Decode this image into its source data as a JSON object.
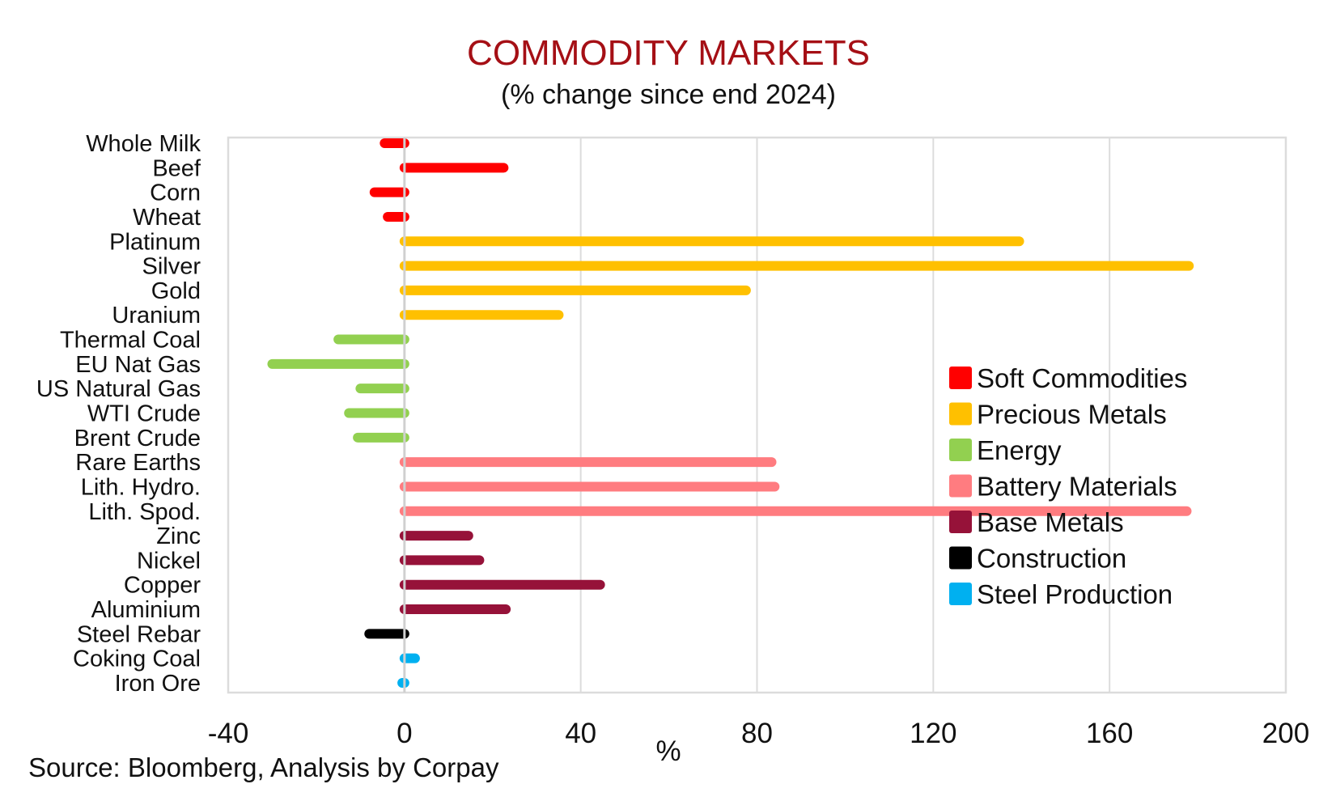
{
  "chart_data": {
    "type": "bar",
    "orientation": "horizontal",
    "title": "COMMODITY MARKETS",
    "subtitle": "(% change since end 2024)",
    "xlabel": "%",
    "ylabel": "",
    "xlim": [
      -40,
      200
    ],
    "xticks": [
      -40,
      0,
      40,
      80,
      120,
      160,
      200
    ],
    "xtick_labels": [
      "-40",
      "0",
      "40",
      "80",
      "120",
      "160",
      "200"
    ],
    "grid": "vertical",
    "legend_position": "right-middle",
    "source": "Source: Bloomberg, Analysis by Corpay",
    "groups": [
      {
        "name": "Soft Commodities",
        "color": "#FF0000"
      },
      {
        "name": "Precious Metals",
        "color": "#FFC000"
      },
      {
        "name": "Energy",
        "color": "#92D050"
      },
      {
        "name": "Battery Materials",
        "color": "#FF7C80"
      },
      {
        "name": "Base Metals",
        "color": "#961239"
      },
      {
        "name": "Construction",
        "color": "#000000"
      },
      {
        "name": "Steel Production",
        "color": "#00B0F0"
      }
    ],
    "categories": [
      "Whole Milk",
      "Beef",
      "Corn",
      "Wheat",
      "Platinum",
      "Silver",
      "Gold",
      "Uranium",
      "Thermal Coal",
      "EU Nat Gas",
      "US Natural Gas",
      "WTI Crude",
      "Brent Crude",
      "Rare Earths",
      "Lith. Hydro.",
      "Lith. Spod.",
      "Zinc",
      "Nickel",
      "Copper",
      "Aluminium",
      "Steel Rebar",
      "Coking Coal",
      "Iron Ore"
    ],
    "values": [
      -4.5,
      22.5,
      -6.8,
      -3.8,
      139.5,
      178,
      77.5,
      35,
      -15,
      -30,
      -10,
      -12.6,
      -10.6,
      83.3,
      84,
      177.5,
      14.5,
      17,
      44.4,
      23,
      -8,
      2.4,
      -0.5
    ],
    "group_index": [
      0,
      0,
      0,
      0,
      1,
      1,
      1,
      1,
      2,
      2,
      2,
      2,
      2,
      3,
      3,
      3,
      4,
      4,
      4,
      4,
      5,
      6,
      6
    ]
  }
}
